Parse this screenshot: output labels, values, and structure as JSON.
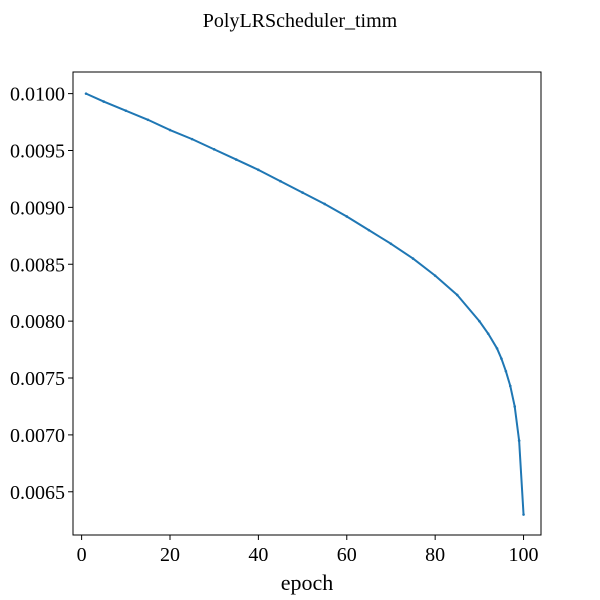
{
  "figure": {
    "background": "#ffffff"
  },
  "chart_data": {
    "type": "line",
    "title": "PolyLRScheduler_timm",
    "xlabel": "epoch",
    "ylabel": "",
    "xlim": [
      -1.95,
      103.95
    ],
    "ylim": [
      0.00612,
      0.01019
    ],
    "x_ticks": [
      0,
      20,
      40,
      60,
      80,
      100
    ],
    "y_ticks": [
      0.0065,
      0.007,
      0.0075,
      0.008,
      0.0085,
      0.009,
      0.0095,
      0.01
    ],
    "y_tick_format_decimals": 4,
    "grid": false,
    "legend": "none",
    "series": [
      {
        "color": "#1f77b4",
        "marker": "point",
        "x": [
          1,
          5,
          10,
          15,
          20,
          25,
          30,
          35,
          40,
          45,
          50,
          55,
          60,
          65,
          70,
          75,
          80,
          85,
          90,
          92,
          94,
          95,
          96,
          97,
          98,
          99,
          100
        ],
        "y": [
          0.01,
          0.00993,
          0.00985,
          0.00977,
          0.00968,
          0.0096,
          0.00951,
          0.00942,
          0.00933,
          0.00923,
          0.00913,
          0.00903,
          0.00892,
          0.0088,
          0.00868,
          0.00855,
          0.0084,
          0.00823,
          0.008,
          0.00789,
          0.00776,
          0.00767,
          0.00756,
          0.00743,
          0.00725,
          0.00695,
          0.0063
        ]
      }
    ]
  }
}
